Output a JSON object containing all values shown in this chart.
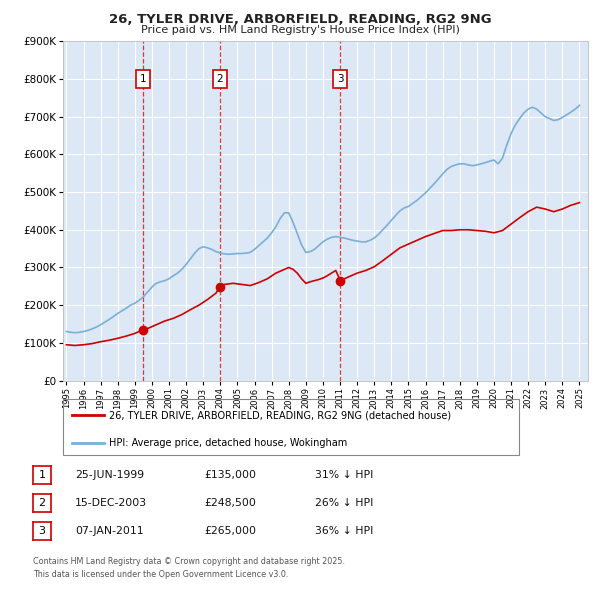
{
  "title": "26, TYLER DRIVE, ARBORFIELD, READING, RG2 9NG",
  "subtitle": "Price paid vs. HM Land Registry's House Price Index (HPI)",
  "ylim": [
    0,
    900000
  ],
  "xlim_start": 1994.8,
  "xlim_end": 2025.5,
  "background_color": "#ffffff",
  "plot_bg_color": "#dce8f5",
  "grid_color": "#ffffff",
  "red_line_color": "#cc0000",
  "blue_line_color": "#7bafd4",
  "vline_color": "#cc0000",
  "legend_label_red": "26, TYLER DRIVE, ARBORFIELD, READING, RG2 9NG (detached house)",
  "legend_label_blue": "HPI: Average price, detached house, Wokingham",
  "transactions": [
    {
      "num": 1,
      "date_year": 1999.48,
      "price": 135000,
      "label": "25-JUN-1999",
      "price_str": "£135,000",
      "pct": "31% ↓ HPI"
    },
    {
      "num": 2,
      "date_year": 2003.96,
      "price": 248500,
      "label": "15-DEC-2003",
      "price_str": "£248,500",
      "pct": "26% ↓ HPI"
    },
    {
      "num": 3,
      "date_year": 2011.02,
      "price": 265000,
      "label": "07-JAN-2011",
      "price_str": "£265,000",
      "pct": "36% ↓ HPI"
    }
  ],
  "footer_line1": "Contains HM Land Registry data © Crown copyright and database right 2025.",
  "footer_line2": "This data is licensed under the Open Government Licence v3.0.",
  "hpi_years": [
    1995.0,
    1995.25,
    1995.5,
    1995.75,
    1996.0,
    1996.25,
    1996.5,
    1996.75,
    1997.0,
    1997.25,
    1997.5,
    1997.75,
    1998.0,
    1998.25,
    1998.5,
    1998.75,
    1999.0,
    1999.25,
    1999.5,
    1999.75,
    2000.0,
    2000.25,
    2000.5,
    2000.75,
    2001.0,
    2001.25,
    2001.5,
    2001.75,
    2002.0,
    2002.25,
    2002.5,
    2002.75,
    2003.0,
    2003.25,
    2003.5,
    2003.75,
    2004.0,
    2004.25,
    2004.5,
    2004.75,
    2005.0,
    2005.25,
    2005.5,
    2005.75,
    2006.0,
    2006.25,
    2006.5,
    2006.75,
    2007.0,
    2007.25,
    2007.5,
    2007.75,
    2008.0,
    2008.25,
    2008.5,
    2008.75,
    2009.0,
    2009.25,
    2009.5,
    2009.75,
    2010.0,
    2010.25,
    2010.5,
    2010.75,
    2011.0,
    2011.25,
    2011.5,
    2011.75,
    2012.0,
    2012.25,
    2012.5,
    2012.75,
    2013.0,
    2013.25,
    2013.5,
    2013.75,
    2014.0,
    2014.25,
    2014.5,
    2014.75,
    2015.0,
    2015.25,
    2015.5,
    2015.75,
    2016.0,
    2016.25,
    2016.5,
    2016.75,
    2017.0,
    2017.25,
    2017.5,
    2017.75,
    2018.0,
    2018.25,
    2018.5,
    2018.75,
    2019.0,
    2019.25,
    2019.5,
    2019.75,
    2020.0,
    2020.25,
    2020.5,
    2020.75,
    2021.0,
    2021.25,
    2021.5,
    2021.75,
    2022.0,
    2022.25,
    2022.5,
    2022.75,
    2023.0,
    2023.25,
    2023.5,
    2023.75,
    2024.0,
    2024.25,
    2024.5,
    2024.75,
    2025.0
  ],
  "hpi_values": [
    130000,
    128000,
    127000,
    128000,
    130000,
    133000,
    137000,
    142000,
    148000,
    155000,
    162000,
    170000,
    178000,
    185000,
    192000,
    200000,
    205000,
    213000,
    222000,
    235000,
    248000,
    258000,
    262000,
    265000,
    270000,
    278000,
    285000,
    295000,
    308000,
    323000,
    338000,
    350000,
    355000,
    352000,
    348000,
    342000,
    338000,
    336000,
    335000,
    336000,
    337000,
    337000,
    338000,
    340000,
    348000,
    358000,
    368000,
    378000,
    392000,
    408000,
    430000,
    445000,
    445000,
    420000,
    390000,
    360000,
    340000,
    342000,
    348000,
    358000,
    368000,
    375000,
    380000,
    382000,
    380000,
    378000,
    375000,
    372000,
    370000,
    368000,
    368000,
    372000,
    378000,
    388000,
    400000,
    412000,
    425000,
    438000,
    450000,
    458000,
    462000,
    470000,
    478000,
    488000,
    498000,
    510000,
    522000,
    535000,
    548000,
    560000,
    568000,
    572000,
    575000,
    575000,
    572000,
    570000,
    572000,
    575000,
    578000,
    582000,
    585000,
    575000,
    590000,
    625000,
    655000,
    678000,
    695000,
    710000,
    720000,
    725000,
    720000,
    710000,
    700000,
    695000,
    690000,
    692000,
    698000,
    705000,
    712000,
    720000,
    730000
  ],
  "red_years": [
    1995.0,
    1995.5,
    1996.0,
    1996.5,
    1997.0,
    1997.5,
    1998.0,
    1998.5,
    1999.0,
    1999.48,
    1999.75,
    2000.25,
    2000.75,
    2001.25,
    2001.75,
    2002.25,
    2002.75,
    2003.25,
    2003.75,
    2003.96,
    2004.25,
    2004.75,
    2005.25,
    2005.75,
    2006.25,
    2006.75,
    2007.25,
    2007.75,
    2008.0,
    2008.25,
    2008.5,
    2008.75,
    2009.0,
    2009.25,
    2009.5,
    2009.75,
    2010.0,
    2010.25,
    2010.75,
    2011.02,
    2011.5,
    2012.0,
    2012.5,
    2013.0,
    2013.5,
    2014.0,
    2014.5,
    2015.0,
    2015.5,
    2016.0,
    2016.5,
    2017.0,
    2017.5,
    2018.0,
    2018.5,
    2019.0,
    2019.5,
    2020.0,
    2020.5,
    2021.0,
    2021.5,
    2022.0,
    2022.5,
    2023.0,
    2023.5,
    2024.0,
    2024.5,
    2025.0
  ],
  "red_values": [
    95000,
    93000,
    95000,
    98000,
    103000,
    107000,
    112000,
    118000,
    125000,
    135000,
    138000,
    148000,
    158000,
    165000,
    175000,
    188000,
    200000,
    215000,
    232000,
    248500,
    255000,
    258000,
    255000,
    252000,
    260000,
    270000,
    285000,
    295000,
    300000,
    295000,
    285000,
    270000,
    258000,
    262000,
    265000,
    268000,
    272000,
    278000,
    292000,
    265000,
    275000,
    285000,
    292000,
    302000,
    318000,
    335000,
    352000,
    362000,
    372000,
    382000,
    390000,
    398000,
    398000,
    400000,
    400000,
    398000,
    396000,
    392000,
    398000,
    415000,
    432000,
    448000,
    460000,
    455000,
    448000,
    455000,
    465000,
    472000
  ]
}
